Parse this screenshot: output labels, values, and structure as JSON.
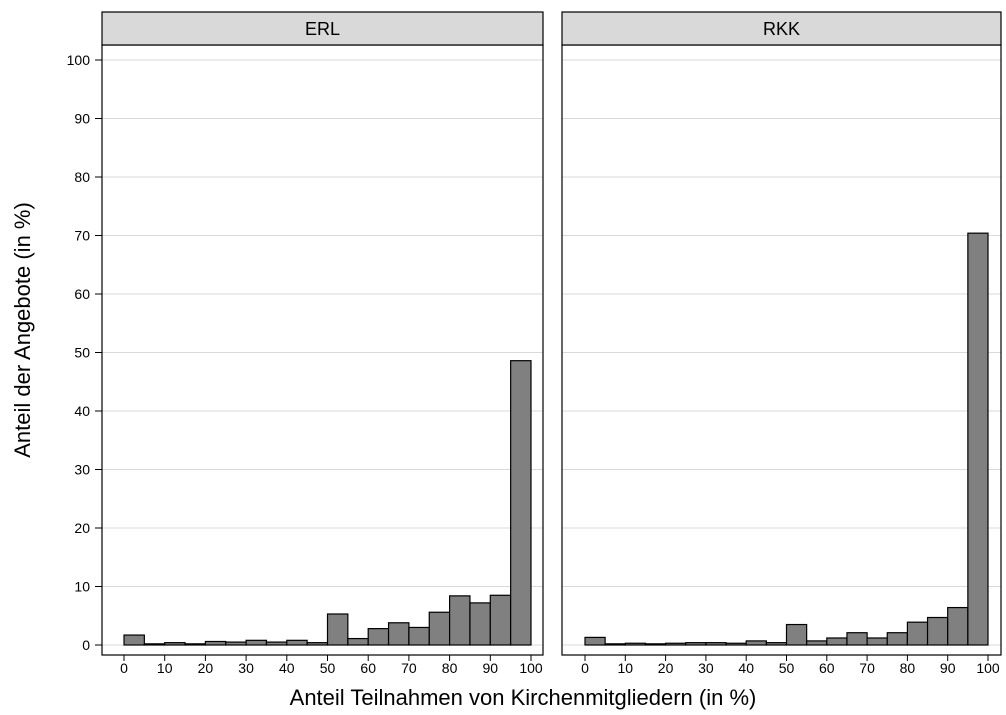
{
  "chart_data": {
    "type": "bar",
    "xlabel": "Anteil Teilnahmen von Kirchenmitgliedern (in %)",
    "ylabel": "Anteil der Angebote (in %)",
    "ylim": [
      0,
      100
    ],
    "yticks": [
      0,
      10,
      20,
      30,
      40,
      50,
      60,
      70,
      80,
      90,
      100
    ],
    "xlim": [
      0,
      100
    ],
    "xticks": [
      0,
      10,
      20,
      30,
      40,
      50,
      60,
      70,
      80,
      90,
      100
    ],
    "bin_width": 5,
    "bin_starts": [
      0,
      5,
      10,
      15,
      20,
      25,
      30,
      35,
      40,
      45,
      50,
      55,
      60,
      65,
      70,
      75,
      80,
      85,
      90,
      95
    ],
    "grid": true,
    "panels": [
      {
        "name": "ERL",
        "values": [
          1.7,
          0.2,
          0.4,
          0.2,
          0.6,
          0.5,
          0.8,
          0.5,
          0.8,
          0.4,
          5.3,
          1.1,
          2.8,
          3.8,
          3.0,
          5.6,
          8.4,
          7.2,
          8.5,
          48.6
        ]
      },
      {
        "name": "RKK",
        "values": [
          1.3,
          0.2,
          0.3,
          0.2,
          0.3,
          0.4,
          0.4,
          0.3,
          0.7,
          0.4,
          3.5,
          0.7,
          1.2,
          2.1,
          1.2,
          2.1,
          3.9,
          4.7,
          6.4,
          70.4
        ]
      }
    ],
    "colors": {
      "bar_fill": "#808080",
      "bar_stroke": "#000000",
      "strip_fill": "#d9d9d9",
      "grid": "#d9d9d9",
      "frame": "#000000"
    }
  }
}
